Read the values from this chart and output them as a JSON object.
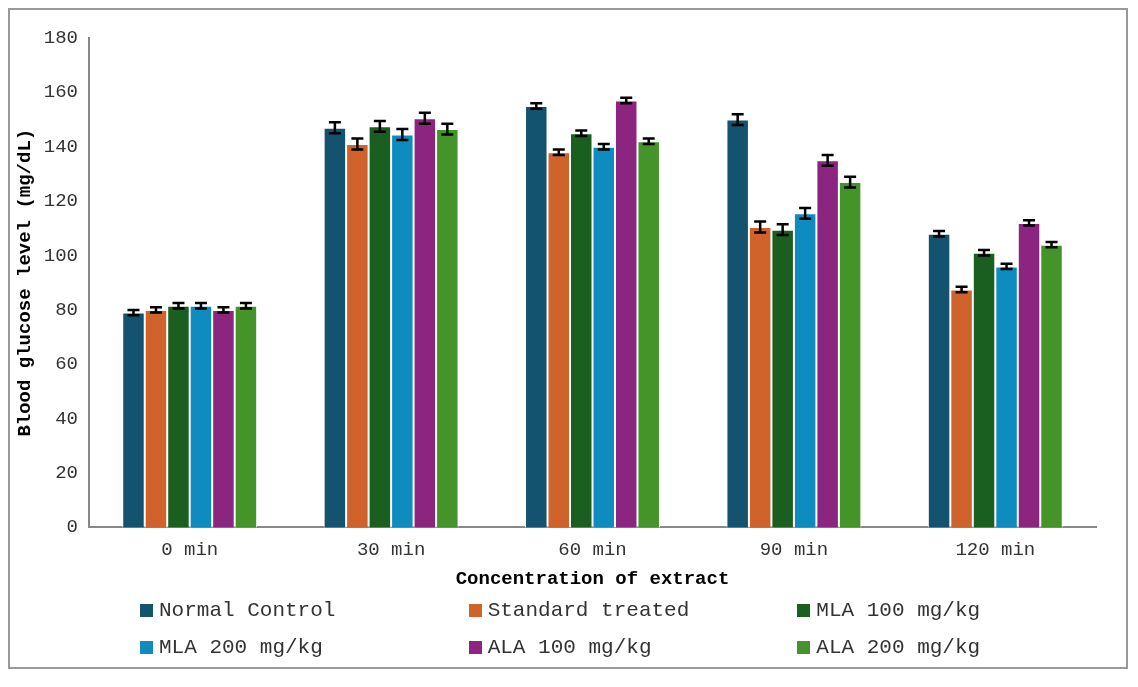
{
  "chart_data": {
    "type": "bar",
    "xlabel": "Concentration of extract",
    "ylabel": "Blood glucose level (mg/dL)",
    "categories": [
      "0 min",
      "30 min",
      "60 min",
      "90 min",
      "120 min"
    ],
    "series": [
      {
        "name": "Normal Control",
        "color": "#145370",
        "values": [
          79,
          147,
          155,
          150,
          108
        ],
        "errors": [
          1,
          2,
          1,
          2,
          1
        ]
      },
      {
        "name": "Standard treated",
        "color": "#d0622c",
        "values": [
          80,
          141,
          138,
          110.5,
          87.5
        ],
        "errors": [
          1,
          2,
          1,
          2,
          1
        ]
      },
      {
        "name": "MLA 100 mg/kg",
        "color": "#1a5e20",
        "values": [
          81.5,
          147.5,
          145,
          109.5,
          101
        ],
        "errors": [
          1,
          2,
          1,
          2,
          1
        ]
      },
      {
        "name": "MLA 200 mg/kg",
        "color": "#0e8bbf",
        "values": [
          81.5,
          144.5,
          140,
          115.5,
          96
        ],
        "errors": [
          1,
          2,
          1,
          2,
          1
        ]
      },
      {
        "name": "ALA 100 mg/kg",
        "color": "#8b2580",
        "values": [
          80,
          150.5,
          157,
          135,
          112
        ],
        "errors": [
          1,
          2,
          1,
          2,
          1
        ]
      },
      {
        "name": "ALA 200 mg/kg",
        "color": "#459429",
        "values": [
          81.5,
          146.5,
          142,
          127,
          104
        ],
        "errors": [
          1,
          2,
          1,
          2,
          1
        ]
      }
    ],
    "ylim": [
      0,
      180
    ],
    "yticks": [
      0,
      20,
      40,
      60,
      80,
      100,
      120,
      140,
      160,
      180
    ],
    "grid": false,
    "legend": "bottom"
  }
}
